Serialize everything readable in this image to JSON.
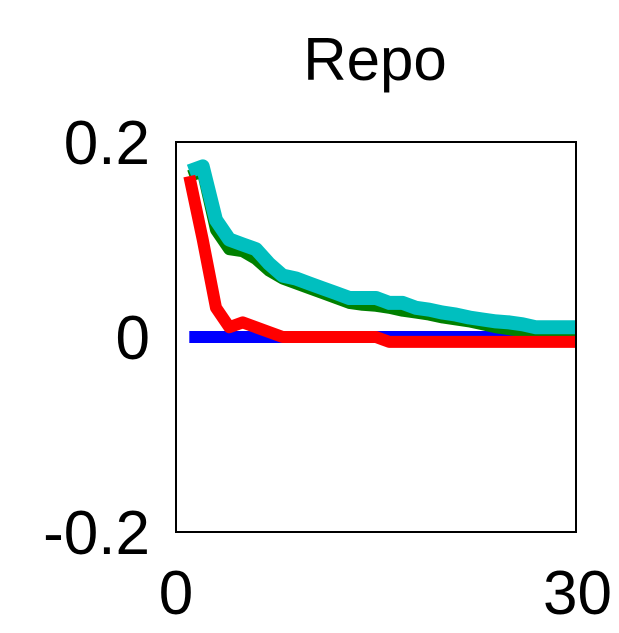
{
  "chart_data": {
    "type": "line",
    "title": "Repo",
    "xlabel": "",
    "ylabel": "",
    "xlim": [
      0,
      30
    ],
    "ylim": [
      -0.2,
      0.2
    ],
    "xticks": [
      0,
      30
    ],
    "xtick_labels": [
      "0",
      "30"
    ],
    "yticks": [
      0.2,
      0,
      -0.2
    ],
    "ytick_labels": [
      "0.2",
      "0",
      "-0.2"
    ],
    "grid": false,
    "legend": "none",
    "x": [
      1,
      2,
      3,
      4,
      5,
      6,
      7,
      8,
      9,
      10,
      11,
      12,
      13,
      14,
      15,
      16,
      17,
      18,
      19,
      20,
      21,
      22,
      23,
      24,
      25,
      26,
      27,
      28,
      29,
      30
    ],
    "series": [
      {
        "color": "#0000ff",
        "values": [
          0,
          0,
          0,
          0,
          0,
          0,
          0,
          0,
          0,
          0,
          0,
          0,
          0,
          0,
          0,
          0,
          0,
          0,
          0,
          0,
          0,
          0,
          0,
          0,
          0,
          0,
          0,
          0,
          0,
          0
        ]
      },
      {
        "color": "#008000",
        "values": [
          0.165,
          0.17,
          0.11,
          0.09,
          0.088,
          0.08,
          0.068,
          0.06,
          0.055,
          0.05,
          0.045,
          0.04,
          0.035,
          0.033,
          0.032,
          0.03,
          0.027,
          0.025,
          0.023,
          0.02,
          0.018,
          0.016,
          0.013,
          0.01,
          0.008,
          0.006,
          0.004,
          0.002,
          0.001,
          0
        ]
      },
      {
        "color": "#00bfbf",
        "values": [
          0.17,
          0.175,
          0.12,
          0.1,
          0.095,
          0.09,
          0.075,
          0.063,
          0.06,
          0.055,
          0.05,
          0.045,
          0.04,
          0.04,
          0.04,
          0.035,
          0.035,
          0.03,
          0.028,
          0.025,
          0.023,
          0.02,
          0.018,
          0.016,
          0.015,
          0.013,
          0.01,
          0.01,
          0.01,
          0.01
        ]
      },
      {
        "color": "#ff0000",
        "values": [
          0.165,
          0.1,
          0.03,
          0.01,
          0.015,
          0.01,
          0.005,
          0,
          0,
          0,
          0,
          0,
          0,
          0,
          0,
          -0.005,
          -0.005,
          -0.005,
          -0.005,
          -0.005,
          -0.005,
          -0.005,
          -0.005,
          -0.005,
          -0.005,
          -0.005,
          -0.005,
          -0.005,
          -0.005,
          -0.005
        ]
      }
    ]
  }
}
